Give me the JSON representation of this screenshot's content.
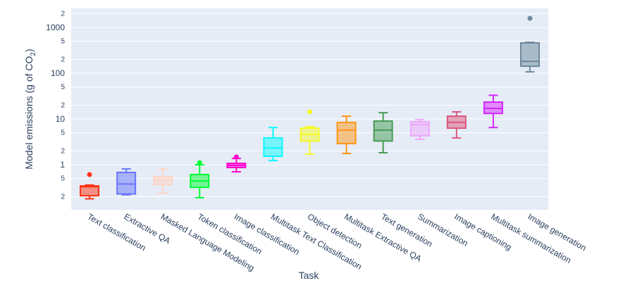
{
  "chart_data": {
    "type": "box",
    "title": "",
    "xlabel": "Task",
    "ylabel": "Model emissions (g of CO2)",
    "yscale": "log",
    "ylim": [
      0.13,
      2500
    ],
    "grid": true,
    "legend": "none",
    "y_ticks": [
      {
        "value": 0.2,
        "label": "2",
        "major": false
      },
      {
        "value": 0.5,
        "label": "5",
        "major": false
      },
      {
        "value": 1,
        "label": "1",
        "major": true
      },
      {
        "value": 2,
        "label": "2",
        "major": false
      },
      {
        "value": 5,
        "label": "5",
        "major": false
      },
      {
        "value": 10,
        "label": "10",
        "major": true
      },
      {
        "value": 20,
        "label": "2",
        "major": false
      },
      {
        "value": 50,
        "label": "5",
        "major": false
      },
      {
        "value": 100,
        "label": "100",
        "major": true
      },
      {
        "value": 200,
        "label": "2",
        "major": false
      },
      {
        "value": 500,
        "label": "5",
        "major": false
      },
      {
        "value": 1000,
        "label": "1000",
        "major": true
      },
      {
        "value": 2000,
        "label": "2",
        "major": false
      }
    ],
    "categories": [
      "Text classification",
      "Extractive QA",
      "Masked Language Modeling",
      "Token classification",
      "Image classification",
      "Multitask Text Classification",
      "Object detection",
      "Multitask Extractive QA",
      "Text generation",
      "Summarization",
      "Image captioning",
      "Multitask summarization",
      "Image generation"
    ],
    "series": [
      {
        "name": "Text classification",
        "color": "#FD3216",
        "min": 0.18,
        "q1": 0.21,
        "median": 0.33,
        "q3": 0.345,
        "max": 0.36,
        "outliers": [
          0.61
        ]
      },
      {
        "name": "Extractive QA",
        "color": "#6A76FC",
        "min": 0.22,
        "q1": 0.23,
        "median": 0.38,
        "q3": 0.68,
        "max": 0.81,
        "outliers": []
      },
      {
        "name": "Masked Language Modeling",
        "color": "#FED4C4",
        "min": 0.24,
        "q1": 0.37,
        "median": 0.47,
        "q3": 0.55,
        "max": 0.81,
        "outliers": []
      },
      {
        "name": "Token classification",
        "color": "#00FE35",
        "min": 0.19,
        "q1": 0.32,
        "median": 0.44,
        "q3": 0.61,
        "max": 1.0,
        "outliers": [
          1.11
        ]
      },
      {
        "name": "Image classification",
        "color": "#FE00CE",
        "min": 0.7,
        "q1": 0.87,
        "median": 0.97,
        "q3": 1.07,
        "max": 1.37,
        "outliers": [
          1.48
        ]
      },
      {
        "name": "Multitask Text Classification",
        "color": "#0DF9FF",
        "min": 1.24,
        "q1": 1.53,
        "median": 2.34,
        "q3": 3.85,
        "max": 6.5,
        "outliers": []
      },
      {
        "name": "Object detection",
        "color": "#F6F926",
        "min": 1.7,
        "q1": 3.3,
        "median": 4.6,
        "q3": 6.3,
        "max": 6.8,
        "outliers": [
          14.3
        ]
      },
      {
        "name": "Multitask Extractive QA",
        "color": "#FF9616",
        "min": 1.76,
        "q1": 2.9,
        "median": 5.7,
        "q3": 8.4,
        "max": 11.5,
        "outliers": []
      },
      {
        "name": "Text generation",
        "color": "#479B55",
        "min": 1.83,
        "q1": 3.3,
        "median": 5.7,
        "q3": 9.0,
        "max": 13.7,
        "outliers": []
      },
      {
        "name": "Summarization",
        "color": "#EEA6FB",
        "min": 3.6,
        "q1": 4.27,
        "median": 7.5,
        "q3": 8.7,
        "max": 9.7,
        "outliers": []
      },
      {
        "name": "Image captioning",
        "color": "#DC587D",
        "min": 3.85,
        "q1": 6.3,
        "median": 8.4,
        "q3": 11.5,
        "max": 14.3,
        "outliers": []
      },
      {
        "name": "Multitask summarization",
        "color": "#D626FF",
        "min": 6.5,
        "q1": 13.2,
        "median": 17,
        "q3": 23.4,
        "max": 33,
        "outliers": []
      },
      {
        "name": "Image generation",
        "color": "#6E899C",
        "min": 107,
        "q1": 142,
        "median": 182,
        "q3": 460,
        "max": 475,
        "outliers": [
          1585
        ]
      }
    ]
  }
}
